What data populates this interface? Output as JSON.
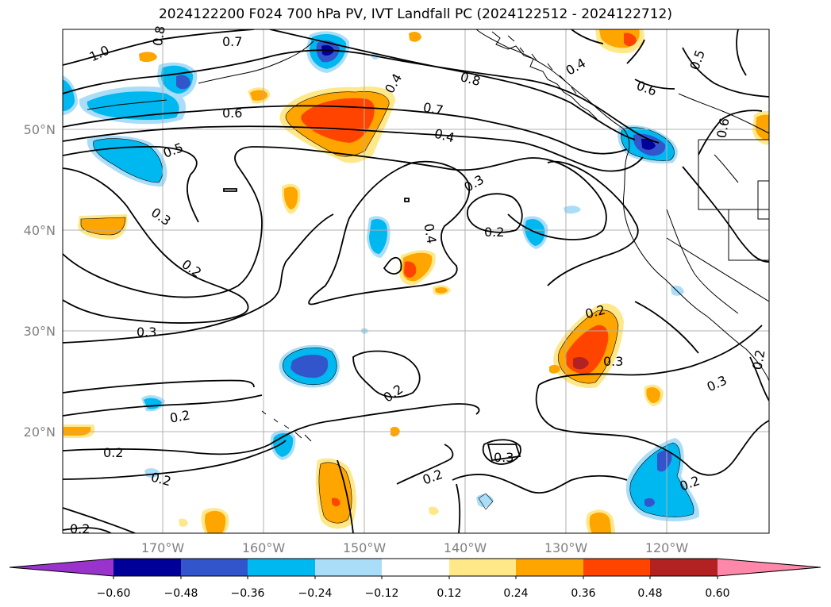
{
  "title": "2024122200 F024 700 hPa PV, IVT Landfall PC (2024122512 - 2024122712)",
  "lat_labels": [
    "50°N",
    "40°N",
    "30°N",
    "20°N"
  ],
  "lon_labels": [
    "170°W",
    "160°W",
    "150°W",
    "140°W",
    "130°W",
    "120°W"
  ],
  "contour_labels": [
    "1.0",
    "0.8",
    "0.7",
    "0.6",
    "0.5",
    "0.4",
    "0.8",
    "0.7",
    "0.4",
    "0.6",
    "0.4",
    "0.5",
    "0.6",
    "0.3",
    "0.2",
    "0.4",
    "0.3",
    "0.2",
    "0.3",
    "0.2",
    "0.2",
    "0.2",
    "0.2",
    "0.2",
    "0.2",
    "0.3",
    "0.3",
    "0.2",
    "0.3",
    "0.2",
    "0.2"
  ],
  "colorbar": {
    "ticks": [
      "−0.60",
      "−0.48",
      "−0.36",
      "−0.24",
      "−0.12",
      "0.12",
      "0.24",
      "0.36",
      "0.48",
      "0.60"
    ],
    "colors": [
      "#9933cc",
      "#000099",
      "#3355cc",
      "#00b8f0",
      "#aaddf8",
      "#ffffff",
      "#ffe88a",
      "#ffa500",
      "#ff4400",
      "#b22222",
      "#ff88aa"
    ]
  }
}
